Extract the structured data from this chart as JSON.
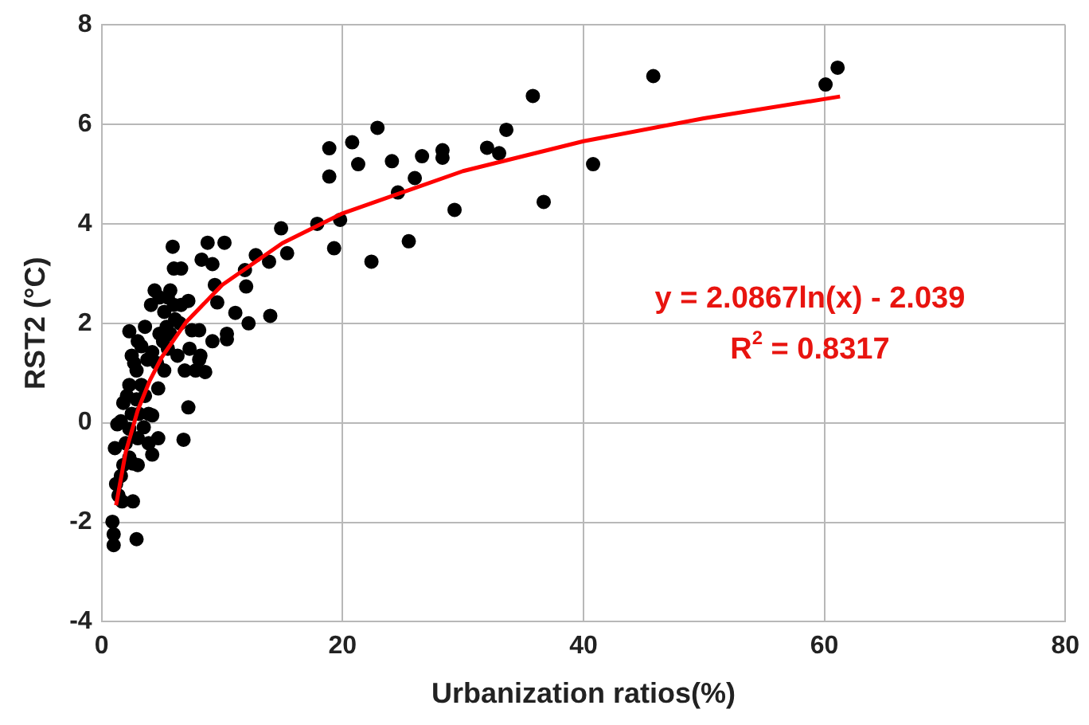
{
  "chart_data": {
    "type": "scatter",
    "xlabel": "Urbanization ratios(%)",
    "ylabel": "RST2 (°C)",
    "xlim": [
      0,
      80
    ],
    "xticks": [
      0,
      20,
      40,
      60,
      80
    ],
    "ylim": [
      -4,
      8
    ],
    "yticks": [
      -4,
      -2,
      0,
      2,
      4,
      6,
      8
    ],
    "grid": true,
    "legend": false,
    "marker": "circle",
    "annotations": [
      "y = 2.0867ln(x) - 2.039",
      "R$^{2}$ = 0.8317"
    ],
    "series": [
      {
        "color": "#000000",
        "x": [
          61.1,
          60.1,
          45.8,
          35.8,
          33.6,
          22.9,
          20.8,
          18.9,
          18.9,
          21.3,
          24.1,
          24.6,
          26.0,
          26.6,
          28.3,
          28.3,
          32.0,
          33.0,
          40.8,
          36.7,
          29.3,
          25.5,
          22.4,
          19.3,
          19.8,
          17.9,
          14.9,
          15.4,
          13.9,
          12.8,
          14.0,
          12.0,
          11.9,
          12.2,
          11.1,
          10.2,
          8.8,
          8.3,
          9.2,
          9.4,
          9.6,
          10.4,
          10.4,
          9.2,
          8.6,
          7.8,
          7.2,
          6.8,
          4.2,
          4.7,
          2.9,
          1.0,
          1.0,
          0.9,
          2.6,
          1.7,
          1.4,
          1.2,
          1.6,
          1.1,
          1.6,
          1.3,
          1.8,
          2.3,
          2.6,
          3.0,
          3.5,
          3.9,
          4.2,
          4.7,
          2.3,
          2.5,
          2.9,
          3.3,
          3.6,
          3.8,
          4.1,
          4.4,
          4.8,
          5.2,
          5.4,
          5.2,
          5.9,
          6.0,
          6.6,
          5.7,
          6.0,
          6.1,
          5.5,
          4.8,
          6.3,
          6.9,
          7.2,
          7.5,
          8.1,
          8.2,
          8.1,
          2.9,
          3.3,
          3.6,
          2.1,
          2.5,
          3.9,
          3.1,
          4.6,
          4.2,
          2.7,
          3.0,
          5.1,
          5.7,
          5.5,
          6.6,
          7.3,
          6.5,
          2.0,
          2.3,
          3.0,
          1.8,
          2.3
        ],
        "values": [
          7.14,
          6.8,
          6.97,
          6.57,
          5.89,
          5.93,
          5.64,
          5.52,
          4.95,
          5.2,
          5.26,
          4.63,
          4.92,
          5.36,
          5.48,
          5.33,
          5.53,
          5.42,
          5.2,
          4.44,
          4.28,
          3.65,
          3.24,
          3.51,
          4.08,
          4.0,
          3.91,
          3.41,
          3.24,
          3.37,
          2.15,
          2.74,
          3.07,
          2.0,
          2.21,
          3.62,
          3.62,
          3.28,
          3.19,
          2.77,
          2.42,
          1.79,
          1.68,
          1.64,
          1.02,
          1.05,
          0.31,
          -0.34,
          -0.64,
          -0.31,
          -2.34,
          -2.46,
          -2.24,
          -1.99,
          -1.58,
          -1.58,
          -1.46,
          -1.23,
          -1.07,
          -0.51,
          0.03,
          -0.03,
          0.4,
          0.76,
          -0.82,
          -0.31,
          -0.09,
          0.18,
          0.15,
          0.69,
          1.84,
          1.35,
          1.05,
          1.54,
          1.93,
          1.27,
          2.37,
          2.66,
          2.52,
          2.23,
          1.93,
          1.05,
          3.54,
          3.1,
          3.1,
          2.66,
          2.37,
          2.08,
          1.49,
          1.79,
          1.35,
          1.05,
          2.45,
          1.86,
          1.86,
          1.35,
          1.27,
          0.47,
          0.76,
          0.54,
          0.54,
          0.18,
          -0.41,
          0.18,
          1.2,
          1.42,
          1.2,
          1.64,
          1.64,
          1.79,
          2.52,
          2.37,
          1.49,
          2.0,
          -0.41,
          -0.7,
          -0.85,
          -0.85,
          -0.12
        ]
      },
      {
        "type": "line",
        "marker": "none",
        "color": "#ff0000",
        "x": [
          1.2,
          2,
          3,
          4,
          5,
          7,
          10,
          15,
          20,
          30,
          40,
          50,
          61.3
        ],
        "values": [
          -1.66,
          -0.59,
          0.25,
          0.85,
          1.32,
          2.02,
          2.77,
          3.61,
          4.21,
          5.06,
          5.66,
          6.12,
          6.56
        ]
      }
    ]
  }
}
